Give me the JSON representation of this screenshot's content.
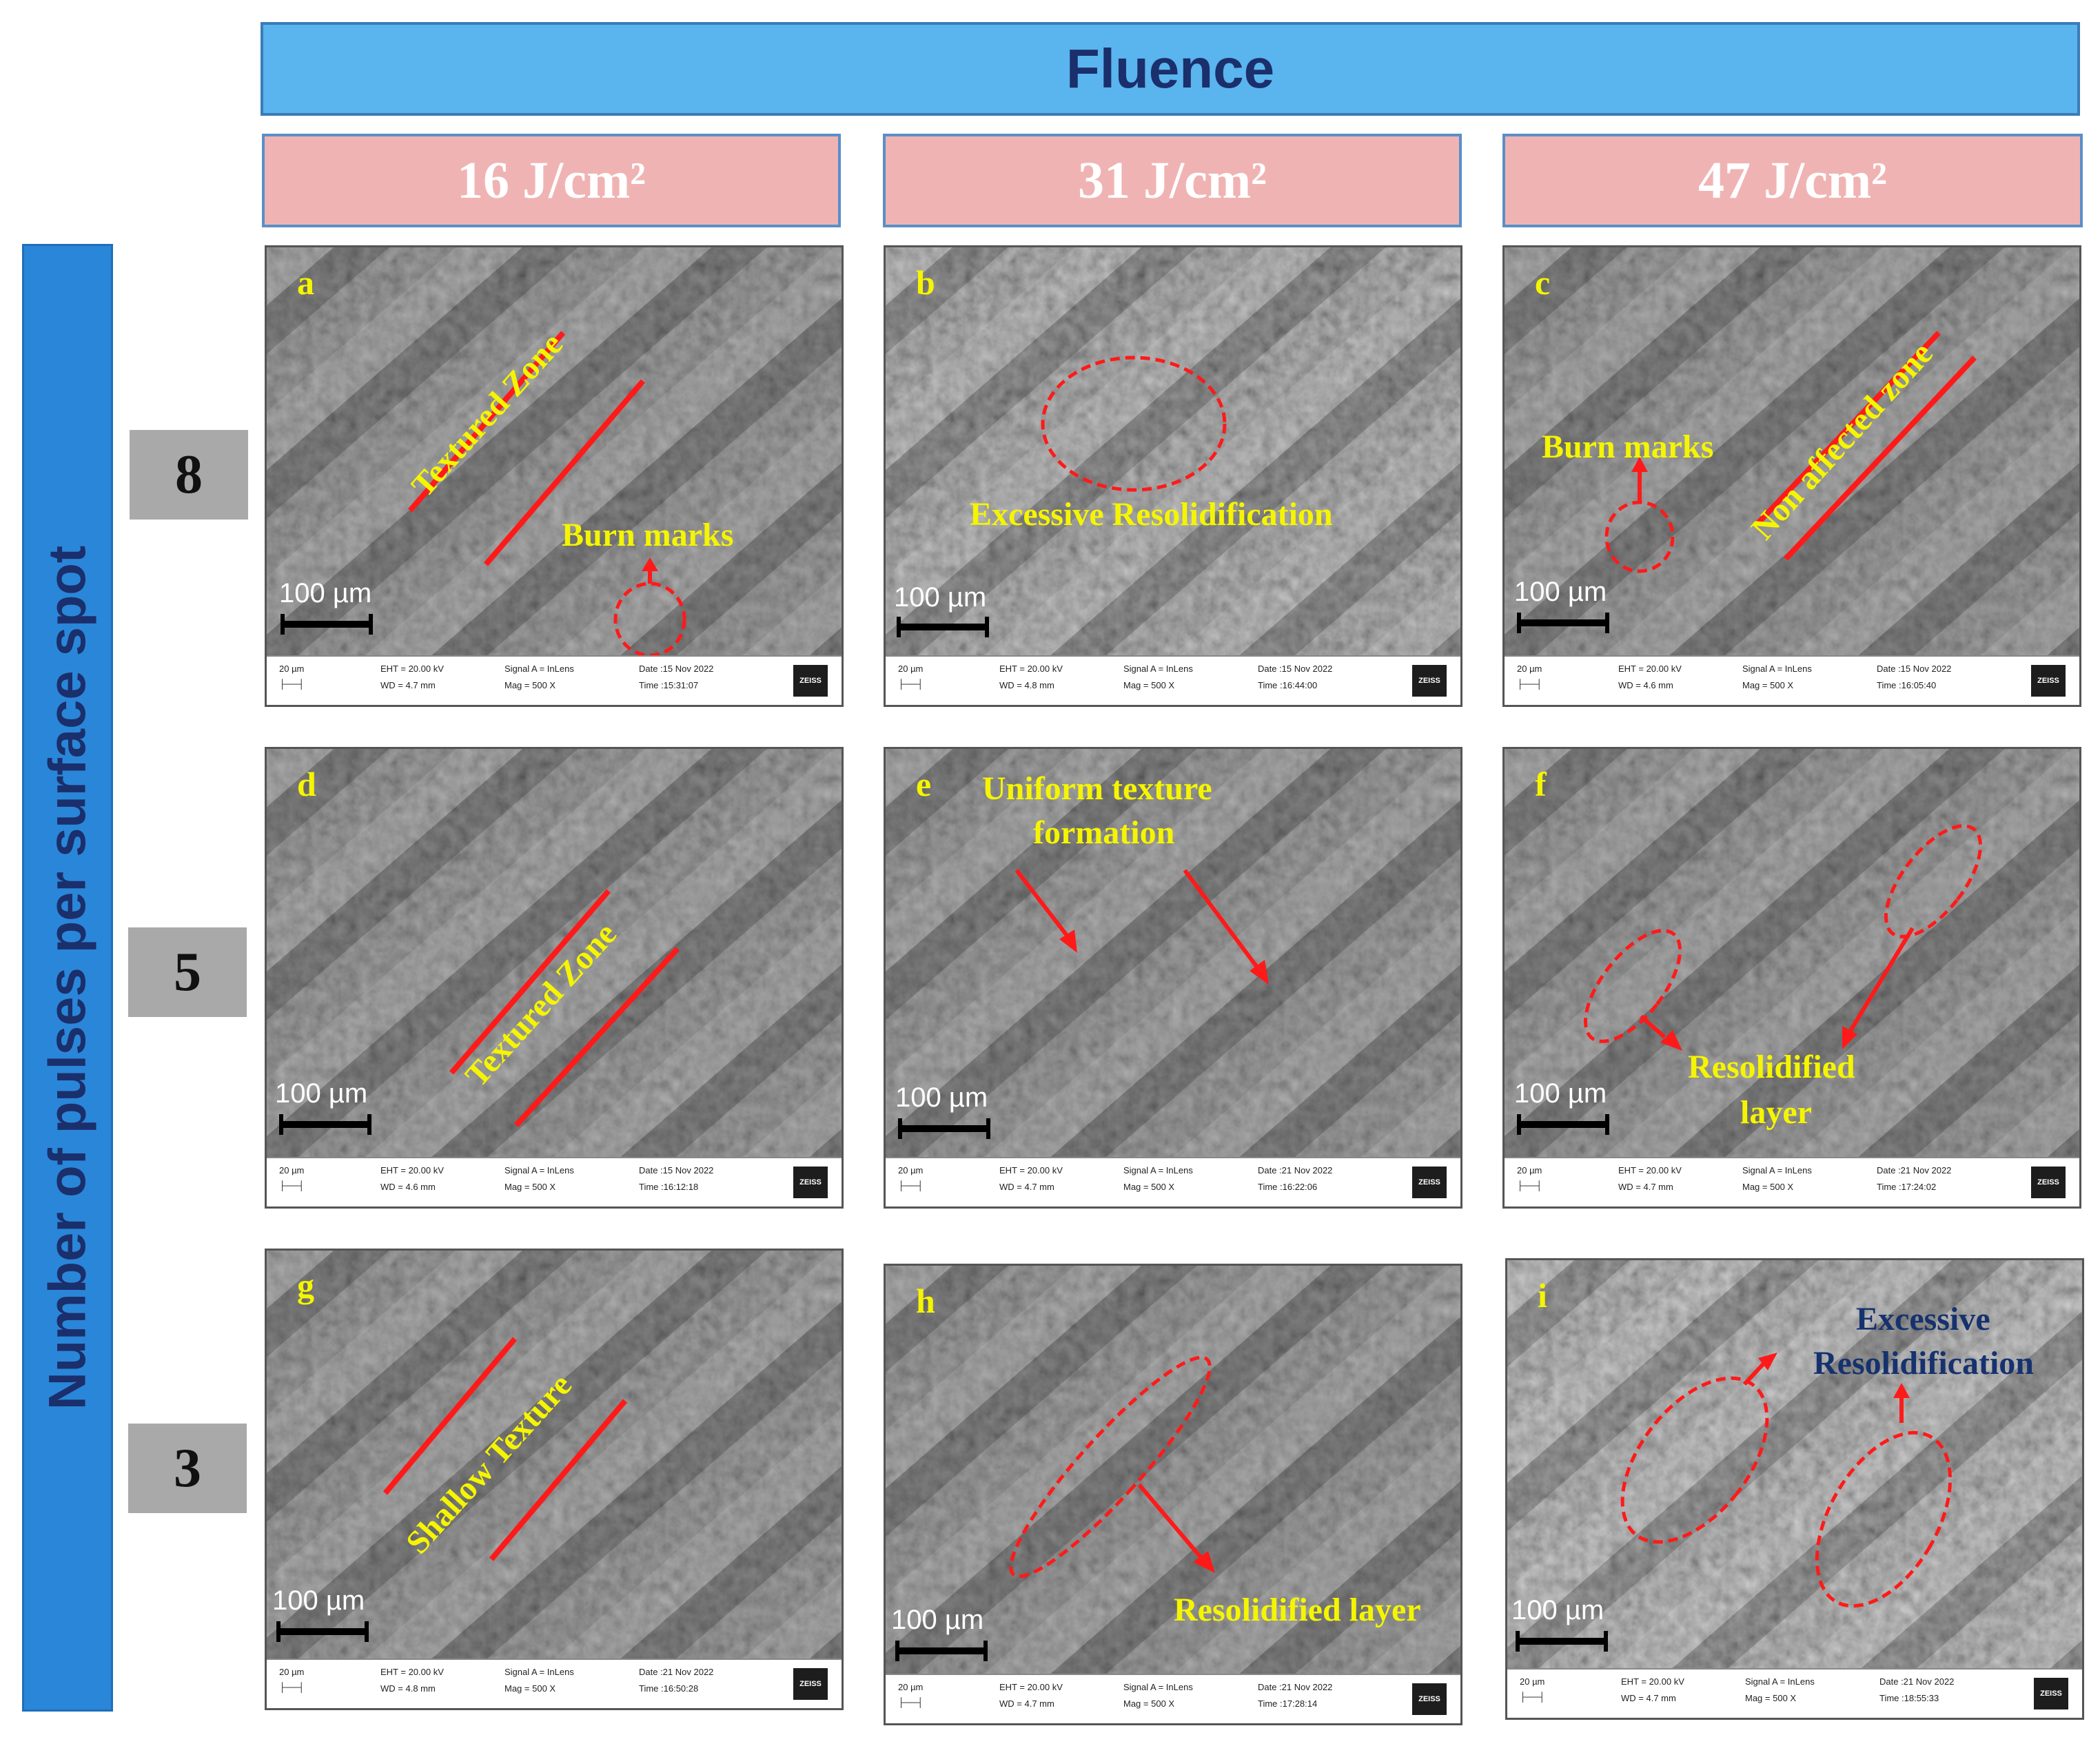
{
  "header": {
    "title": "Fluence"
  },
  "columns": [
    {
      "label": "16 J/cm²"
    },
    {
      "label": "31 J/cm²"
    },
    {
      "label": "47 J/cm²"
    }
  ],
  "y_axis": {
    "label": "Number of pulses per surface spot"
  },
  "rows": [
    {
      "label": "8"
    },
    {
      "label": "5"
    },
    {
      "label": "3"
    }
  ],
  "colors": {
    "accent_blue": "#5ab4ee",
    "header_pink": "#f0b3b3",
    "annotation_red": "#ff1a1a",
    "annotation_yellow": "#f5f500"
  },
  "panels": [
    {
      "id": "a",
      "scale": "100 µm",
      "footer": {
        "scale_small": "20 µm",
        "eht": "EHT = 20.00 kV",
        "wd": "WD = 4.7 mm",
        "signal": "Signal A = InLens",
        "mag": "Mag =    500 X",
        "date": "Date :15 Nov 2022",
        "time": "Time :15:31:07",
        "logo": "ZEISS"
      },
      "notes": [
        "Textured Zone",
        "Burn marks"
      ]
    },
    {
      "id": "b",
      "scale": "100 µm",
      "footer": {
        "scale_small": "20 µm",
        "eht": "EHT = 20.00 kV",
        "wd": "WD = 4.8 mm",
        "signal": "Signal A = InLens",
        "mag": "Mag =    500 X",
        "date": "Date :15 Nov 2022",
        "time": "Time :16:44:00",
        "logo": "ZEISS"
      },
      "notes": [
        "Excessive Resolidification"
      ]
    },
    {
      "id": "c",
      "scale": "100 µm",
      "footer": {
        "scale_small": "20 µm",
        "eht": "EHT = 20.00 kV",
        "wd": "WD = 4.6 mm",
        "signal": "Signal A = InLens",
        "mag": "Mag =    500 X",
        "date": "Date :15 Nov 2022",
        "time": "Time :16:05:40",
        "logo": "ZEISS"
      },
      "notes": [
        "Burn marks",
        "Non affected zone"
      ]
    },
    {
      "id": "d",
      "scale": "100 µm",
      "footer": {
        "scale_small": "20 µm",
        "eht": "EHT = 20.00 kV",
        "wd": "WD = 4.6 mm",
        "signal": "Signal A = InLens",
        "mag": "Mag =    500 X",
        "date": "Date :15 Nov 2022",
        "time": "Time :16:12:18",
        "logo": "ZEISS"
      },
      "notes": [
        "Textured Zone"
      ]
    },
    {
      "id": "e",
      "scale": "100 µm",
      "footer": {
        "scale_small": "20 µm",
        "eht": "EHT = 20.00 kV",
        "wd": "WD = 4.7 mm",
        "signal": "Signal A = InLens",
        "mag": "Mag =    500 X",
        "date": "Date :21 Nov 2022",
        "time": "Time :16:22:06",
        "logo": "ZEISS"
      },
      "notes": [
        "Uniform texture",
        "formation"
      ]
    },
    {
      "id": "f",
      "scale": "100 µm",
      "footer": {
        "scale_small": "20 µm",
        "eht": "EHT = 20.00 kV",
        "wd": "WD = 4.7 mm",
        "signal": "Signal A = InLens",
        "mag": "Mag =    500 X",
        "date": "Date :21 Nov 2022",
        "time": "Time :17:24:02",
        "logo": "ZEISS"
      },
      "notes": [
        "Resolidified",
        "layer"
      ]
    },
    {
      "id": "g",
      "scale": "100 µm",
      "footer": {
        "scale_small": "20 µm",
        "eht": "EHT = 20.00 kV",
        "wd": "WD = 4.8 mm",
        "signal": "Signal A = InLens",
        "mag": "Mag =    500 X",
        "date": "Date :21 Nov 2022",
        "time": "Time :16:50:28",
        "logo": "ZEISS"
      },
      "notes": [
        "Shallow Texture"
      ]
    },
    {
      "id": "h",
      "scale": "100 µm",
      "footer": {
        "scale_small": "20 µm",
        "eht": "EHT = 20.00 kV",
        "wd": "WD = 4.7 mm",
        "signal": "Signal A = InLens",
        "mag": "Mag =    500 X",
        "date": "Date :21 Nov 2022",
        "time": "Time :17:28:14",
        "logo": "ZEISS"
      },
      "notes": [
        "Resolidified layer"
      ]
    },
    {
      "id": "i",
      "scale": "100 µm",
      "footer": {
        "scale_small": "20 µm",
        "eht": "EHT = 20.00 kV",
        "wd": "WD = 4.7 mm",
        "signal": "Signal A = InLens",
        "mag": "Mag =    500 X",
        "date": "Date :21 Nov 2022",
        "time": "Time :18:55:33",
        "logo": "ZEISS"
      },
      "notes": [
        "Excessive",
        "Resolidification"
      ]
    }
  ]
}
